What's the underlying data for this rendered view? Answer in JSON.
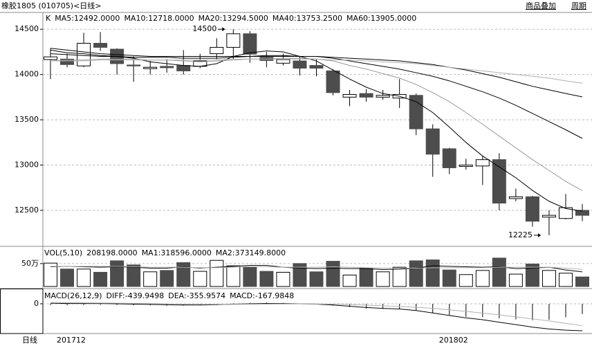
{
  "header": {
    "title": "橡胶1805 (010705)<日线>",
    "buttons": [
      "商品叠加",
      "周期"
    ]
  },
  "footer": {
    "period": "日线"
  },
  "chart_data": [
    {
      "type": "candlestick",
      "title": "K",
      "categories": [
        null,
        "201712",
        null,
        null,
        null,
        null,
        null,
        null,
        null,
        null,
        null,
        null,
        null,
        null,
        null,
        null,
        null,
        null,
        null,
        null,
        null,
        null,
        null,
        null,
        "201802",
        null,
        null,
        null,
        null,
        null,
        null,
        null,
        null
      ],
      "open": [
        14165,
        14170,
        14095,
        14345,
        14280,
        14105,
        14065,
        14090,
        14100,
        14090,
        14230,
        14300,
        14450,
        14190,
        14125,
        14150,
        14100,
        14040,
        13750,
        13790,
        13750,
        13740,
        13770,
        13400,
        13180,
        12985,
        12990,
        13060,
        12630,
        12650,
        12425,
        12410,
        12500
      ],
      "high": [
        14290,
        14230,
        14460,
        14470,
        14290,
        14200,
        14150,
        14170,
        14270,
        14230,
        14400,
        14500,
        14480,
        14250,
        14230,
        14200,
        14170,
        14060,
        13830,
        13840,
        13830,
        13950,
        13790,
        13450,
        13190,
        13070,
        13100,
        13130,
        12740,
        12660,
        12500,
        12680,
        12570
      ],
      "low": [
        13950,
        14080,
        14080,
        14260,
        14000,
        13920,
        14000,
        14020,
        14000,
        14070,
        14170,
        14170,
        14130,
        14080,
        14100,
        13990,
        13980,
        13770,
        13650,
        13700,
        13720,
        13630,
        13330,
        12870,
        12900,
        12950,
        12780,
        12500,
        12600,
        12320,
        12225,
        12400,
        12380
      ],
      "close": [
        14195,
        14110,
        14345,
        14300,
        14120,
        14095,
        14080,
        14075,
        14040,
        14150,
        14300,
        14450,
        14225,
        14155,
        14165,
        14070,
        14070,
        13800,
        13780,
        13750,
        13770,
        13780,
        13400,
        13120,
        12970,
        13000,
        13060,
        12580,
        12650,
        12380,
        12445,
        12530,
        12445
      ],
      "up_color": "#ffffff",
      "down_color": "#4d4d4d",
      "ylim": [
        12110,
        14670
      ],
      "yticks": [
        12500,
        13000,
        13500,
        14000,
        14500
      ],
      "grid": true,
      "series": [
        {
          "name": "MA5:12492.0000",
          "color": "#000000",
          "values": [
            14270,
            14240,
            14230,
            14210,
            14200,
            14180,
            14140,
            14120,
            14100,
            14090,
            14120,
            14200,
            14240,
            14260,
            14250,
            14200,
            14150,
            14050,
            13950,
            13860,
            13790,
            13760,
            13700,
            13580,
            13420,
            13250,
            13100,
            12980,
            12860,
            12720,
            12600,
            12520,
            12492
          ]
        },
        {
          "name": "MA10:12718.0000",
          "color": "#999999",
          "values": [
            14150,
            14160,
            14160,
            14170,
            14170,
            14170,
            14160,
            14160,
            14150,
            14140,
            14150,
            14160,
            14170,
            14170,
            14180,
            14180,
            14170,
            14150,
            14100,
            14060,
            14010,
            13960,
            13890,
            13800,
            13700,
            13580,
            13450,
            13320,
            13190,
            13060,
            12940,
            12820,
            12718
          ]
        },
        {
          "name": "MA20:13294.5000",
          "color": "#000000",
          "values": [
            14230,
            14220,
            14210,
            14200,
            14200,
            14190,
            14190,
            14190,
            14180,
            14180,
            14180,
            14190,
            14200,
            14210,
            14210,
            14200,
            14200,
            14180,
            14150,
            14120,
            14090,
            14060,
            14020,
            13980,
            13930,
            13870,
            13810,
            13740,
            13660,
            13570,
            13480,
            13390,
            13294.5
          ]
        },
        {
          "name": "MA40:13753.2500",
          "color": "#000000",
          "values": [
            14290,
            14270,
            14250,
            14230,
            14220,
            14210,
            14200,
            14200,
            14200,
            14200,
            14200,
            14200,
            14200,
            14200,
            14200,
            14200,
            14200,
            14190,
            14180,
            14170,
            14160,
            14150,
            14130,
            14110,
            14080,
            14050,
            14010,
            13970,
            13920,
            13870,
            13830,
            13790,
            13753.25
          ]
        },
        {
          "name": "MA60:13905.0000",
          "color": "#b0b0b0",
          "values": [
            14150,
            14150,
            14150,
            14160,
            14160,
            14160,
            14160,
            14160,
            14160,
            14160,
            14160,
            14170,
            14170,
            14170,
            14170,
            14170,
            14170,
            14160,
            14160,
            14150,
            14140,
            14130,
            14120,
            14100,
            14080,
            14060,
            14040,
            14020,
            14000,
            13980,
            13960,
            13930,
            13905
          ]
        }
      ],
      "annotations": [
        {
          "text": "14500",
          "value": 14500
        },
        {
          "text": "12225",
          "value": 12225
        }
      ]
    },
    {
      "type": "bar",
      "title": "VOL(5,10)",
      "subtitle": "208198.0000",
      "values": [
        510000,
        380000,
        380000,
        310000,
        560000,
        470000,
        320000,
        350000,
        520000,
        330000,
        570000,
        450000,
        430000,
        330000,
        310000,
        500000,
        320000,
        550000,
        250000,
        400000,
        320000,
        420000,
        560000,
        580000,
        360000,
        260000,
        350000,
        620000,
        270000,
        490000,
        350000,
        290000,
        208198
      ],
      "ylim": [
        0,
        860000
      ],
      "yticks": [
        {
          "value": 500000,
          "label": "50万"
        }
      ],
      "grid": true,
      "series": [
        {
          "name": "MA1:318596.0000",
          "color": "#000000",
          "values": [
            430000,
            440000,
            430000,
            420000,
            430000,
            420000,
            400000,
            400000,
            430000,
            400000,
            420000,
            440000,
            460000,
            460000,
            420000,
            400000,
            390000,
            400000,
            390000,
            390000,
            370000,
            380000,
            400000,
            450000,
            440000,
            430000,
            420000,
            430000,
            390000,
            400000,
            420000,
            360000,
            318596
          ]
        },
        {
          "name": "MA2:373149.8000",
          "color": "#b0b0b0",
          "values": [
            440000,
            440000,
            440000,
            440000,
            440000,
            430000,
            420000,
            420000,
            420000,
            410000,
            410000,
            420000,
            430000,
            430000,
            420000,
            420000,
            420000,
            430000,
            420000,
            410000,
            400000,
            400000,
            400000,
            410000,
            410000,
            410000,
            410000,
            420000,
            420000,
            420000,
            420000,
            400000,
            373149.8
          ]
        }
      ]
    },
    {
      "type": "macd",
      "title": "MACD(26,12,9)",
      "ylim": [
        -485,
        237
      ],
      "yticks": [
        0
      ],
      "grid": true,
      "series": [
        {
          "name": "DIFF:-439.9498",
          "color": "#000000",
          "values": [
            10,
            5,
            5,
            5,
            0,
            -5,
            -10,
            -15,
            -20,
            -20,
            -15,
            -5,
            0,
            5,
            5,
            0,
            -5,
            -20,
            -40,
            -60,
            -75,
            -85,
            -110,
            -150,
            -190,
            -230,
            -260,
            -300,
            -340,
            -380,
            -410,
            -430,
            -439.9498
          ]
        },
        {
          "name": "DEA:-355.9574",
          "color": "#b0b0b0",
          "values": [
            20,
            17,
            15,
            13,
            10,
            7,
            3,
            0,
            -5,
            -8,
            -10,
            -9,
            -7,
            -5,
            -3,
            -2,
            -3,
            -6,
            -13,
            -22,
            -33,
            -43,
            -57,
            -75,
            -98,
            -124,
            -151,
            -181,
            -213,
            -246,
            -279,
            -320,
            -355.9574
          ]
        }
      ],
      "histogram": {
        "name": "MACD:-167.9848",
        "color": "#000000",
        "values": [
          -20,
          -24,
          -20,
          -16,
          -20,
          -24,
          -26,
          -30,
          -30,
          -24,
          -10,
          8,
          14,
          20,
          16,
          4,
          -4,
          -28,
          -54,
          -76,
          -84,
          -84,
          -106,
          -150,
          -184,
          -212,
          -218,
          -238,
          -254,
          -268,
          -262,
          -220,
          -167.9848
        ]
      }
    }
  ]
}
